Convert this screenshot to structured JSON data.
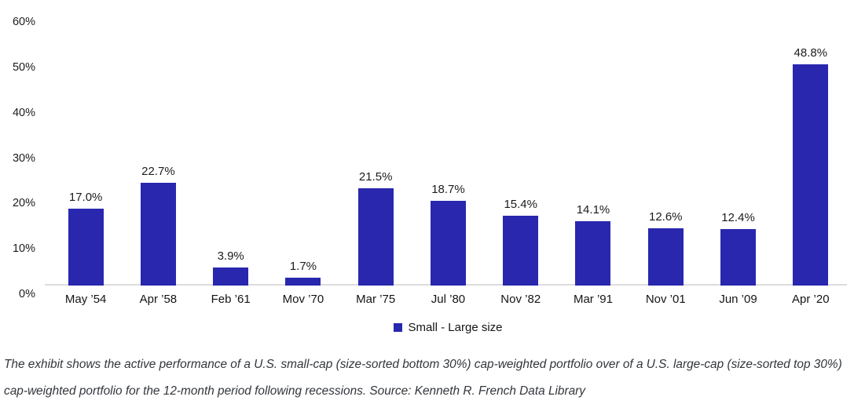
{
  "chart_data": {
    "type": "bar",
    "title": "",
    "categories": [
      "May ’54",
      "Apr ’58",
      "Feb ’61",
      "Mov ’70",
      "Mar ’75",
      "Jul ’80",
      "Nov ’82",
      "Mar ’91",
      "Nov ’01",
      "Jun ’09",
      "Apr ’20"
    ],
    "values": [
      17.0,
      22.7,
      3.9,
      1.7,
      21.5,
      18.7,
      15.4,
      14.1,
      12.6,
      12.4,
      48.8
    ],
    "value_labels": [
      "17.0%",
      "22.7%",
      "3.9%",
      "1.7%",
      "21.5%",
      "18.7%",
      "15.4%",
      "14.1%",
      "12.6%",
      "12.4%",
      "48.8%"
    ],
    "xlabel": "",
    "ylabel": "",
    "ylim": [
      0,
      60
    ],
    "y_ticks": [
      {
        "value": 0,
        "label": "0%"
      },
      {
        "value": 10,
        "label": "10%"
      },
      {
        "value": 20,
        "label": "20%"
      },
      {
        "value": 30,
        "label": "30%"
      },
      {
        "value": 40,
        "label": "40%"
      },
      {
        "value": 50,
        "label": "50%"
      },
      {
        "value": 60,
        "label": "60%"
      }
    ],
    "grid": false,
    "legend": "Small - Large size",
    "legend_position": "bottom",
    "bar_color": "#2927ae",
    "axis_line_color": "#dcdcdc"
  },
  "caption": "The exhibit shows the active performance of a U.S. small-cap (size-sorted bottom 30%) cap-weighted portfolio over of a U.S. large-cap (size-sorted top 30%) cap-weighted portfolio for the 12-month period following recessions. Source: Kenneth R. French Data Library"
}
